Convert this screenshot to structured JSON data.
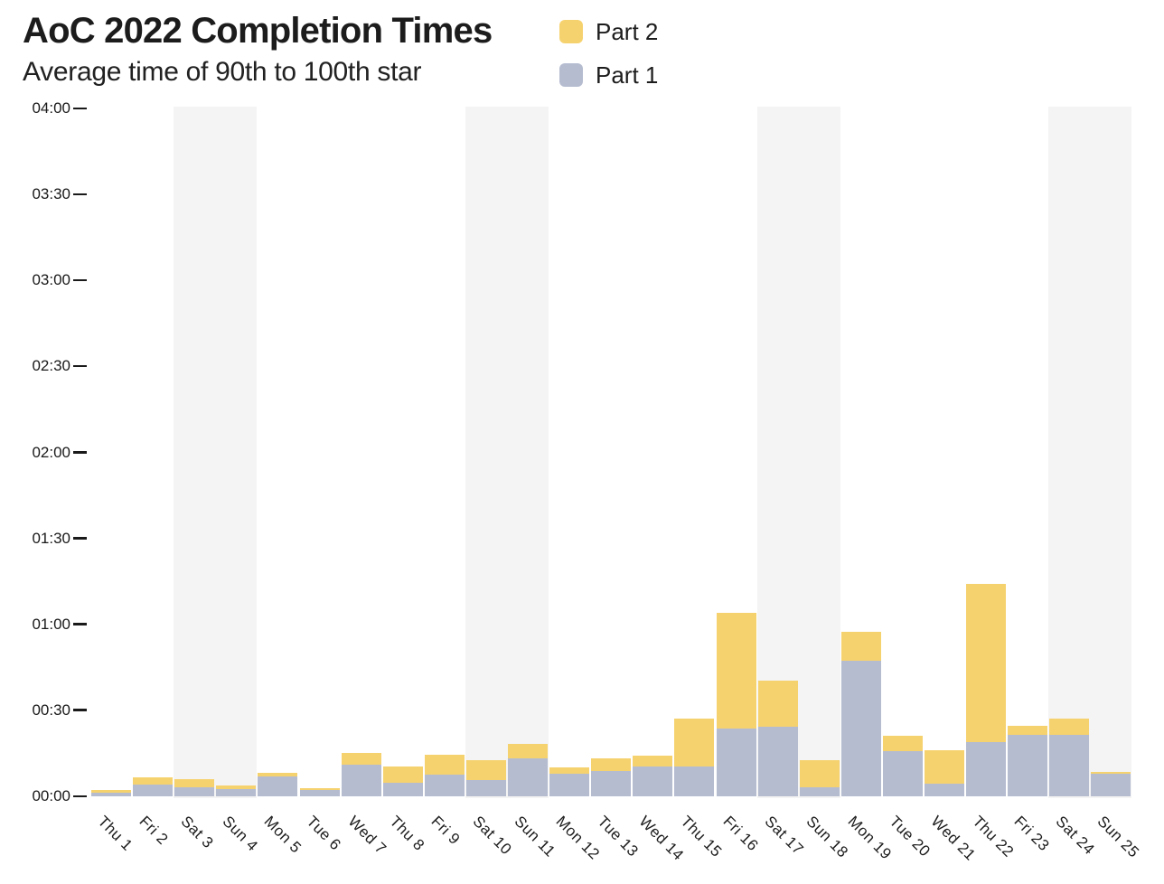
{
  "header": {
    "title": "AoC 2022 Completion Times",
    "subtitle": "Average time of 90th to 100th star"
  },
  "legend": {
    "items": [
      {
        "label": "Part 2",
        "color": "#F6D26F"
      },
      {
        "label": "Part 1",
        "color": "#B5BCD0"
      }
    ]
  },
  "chart_data": {
    "type": "bar",
    "stacked": true,
    "title": "AoC 2022 Completion Times",
    "subtitle": "Average time of 90th to 100th star",
    "categories": [
      "Thu 1",
      "Fri 2",
      "Sat 3",
      "Sun 4",
      "Mon 5",
      "Tue 6",
      "Wed 7",
      "Thu 8",
      "Fri 9",
      "Sat 10",
      "Sun 11",
      "Mon 12",
      "Tue 13",
      "Wed 14",
      "Thu 15",
      "Fri 16",
      "Sat 17",
      "Sun 18",
      "Mon 19",
      "Tue 20",
      "Wed 21",
      "Thu 22",
      "Fri 23",
      "Sat 24",
      "Sun 25"
    ],
    "series": [
      {
        "name": "Part 1",
        "color": "#B5BCD0",
        "values_minutes": [
          1.3,
          4.0,
          3.0,
          2.4,
          6.9,
          2.1,
          11.0,
          4.7,
          7.7,
          5.8,
          13.1,
          7.9,
          8.7,
          10.5,
          10.5,
          23.7,
          24.3,
          3.2,
          47.4,
          15.8,
          4.5,
          18.9,
          21.5,
          21.3,
          7.8
        ]
      },
      {
        "name": "Part 2",
        "color": "#F6D26F",
        "values_minutes": [
          0.9,
          2.6,
          2.9,
          1.3,
          1.4,
          0.7,
          4.0,
          5.6,
          6.8,
          6.8,
          5.3,
          2.1,
          4.4,
          3.7,
          16.6,
          40.2,
          16.0,
          9.5,
          10.0,
          5.2,
          11.6,
          55.2,
          3.2,
          5.8,
          0.8
        ]
      }
    ],
    "y_axis": {
      "unit": "hh:mm",
      "min_minutes": 0,
      "max_minutes": 240,
      "tick_step_minutes": 30,
      "tick_labels": [
        "00:00",
        "00:30",
        "01:00",
        "01:30",
        "02:00",
        "02:30",
        "03:00",
        "03:30",
        "04:00"
      ]
    },
    "weekend_bands_day_pairs": [
      [
        3,
        4
      ],
      [
        10,
        11
      ],
      [
        17,
        18
      ],
      [
        24,
        25
      ]
    ],
    "band_color": "#f4f4f4",
    "grid": false,
    "legend_position": "top-right",
    "legend_order": [
      "Part 2",
      "Part 1"
    ]
  }
}
